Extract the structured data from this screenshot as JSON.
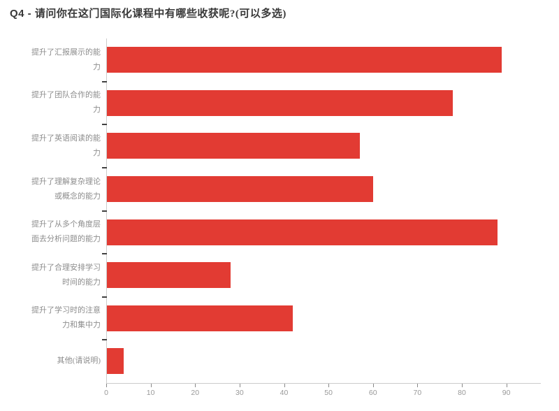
{
  "title": {
    "prefix": "Q4 -",
    "text": "请问你在这门国际化课程中有哪些收获呢?(可以多选)"
  },
  "chart_data": {
    "type": "bar",
    "orientation": "horizontal",
    "title": "Q4 - 请问你在这门国际化课程中有哪些收获呢?(可以多选)",
    "categories": [
      "提升了汇报展示的能力",
      "提升了团队合作的能力",
      "提升了英语阅读的能力",
      "提升了理解复杂理论或概念的能力",
      "提升了从多个角度层面去分析问题的能力",
      "提升了合理安排学习时间的能力",
      "提升了学习时的注意力和集中力",
      "其他(请说明)"
    ],
    "category_lines": [
      [
        "提升了汇报展示的能",
        "力"
      ],
      [
        "提升了团队合作的能",
        "力"
      ],
      [
        "提升了英语阅读的能",
        "力"
      ],
      [
        "提升了理解复杂理论",
        "或概念的能力"
      ],
      [
        "提升了从多个角度层",
        "面去分析问题的能力"
      ],
      [
        "提升了合理安排学习",
        "时间的能力"
      ],
      [
        "提升了学习时的注意",
        "力和集中力"
      ],
      [
        "其他(请说明)"
      ]
    ],
    "values": [
      89,
      78,
      57,
      60,
      88,
      28,
      42,
      4
    ],
    "x_ticks": [
      0,
      10,
      20,
      30,
      40,
      50,
      60,
      70,
      80,
      90
    ],
    "x_axis_extent": 97.6,
    "xlabel": "",
    "ylabel": "",
    "grid": false,
    "legend": false,
    "bar_color": "#e23b33",
    "axis_color": "#cccccc",
    "label_color": "#8d8d8d",
    "tick_label_color": "#999999"
  }
}
